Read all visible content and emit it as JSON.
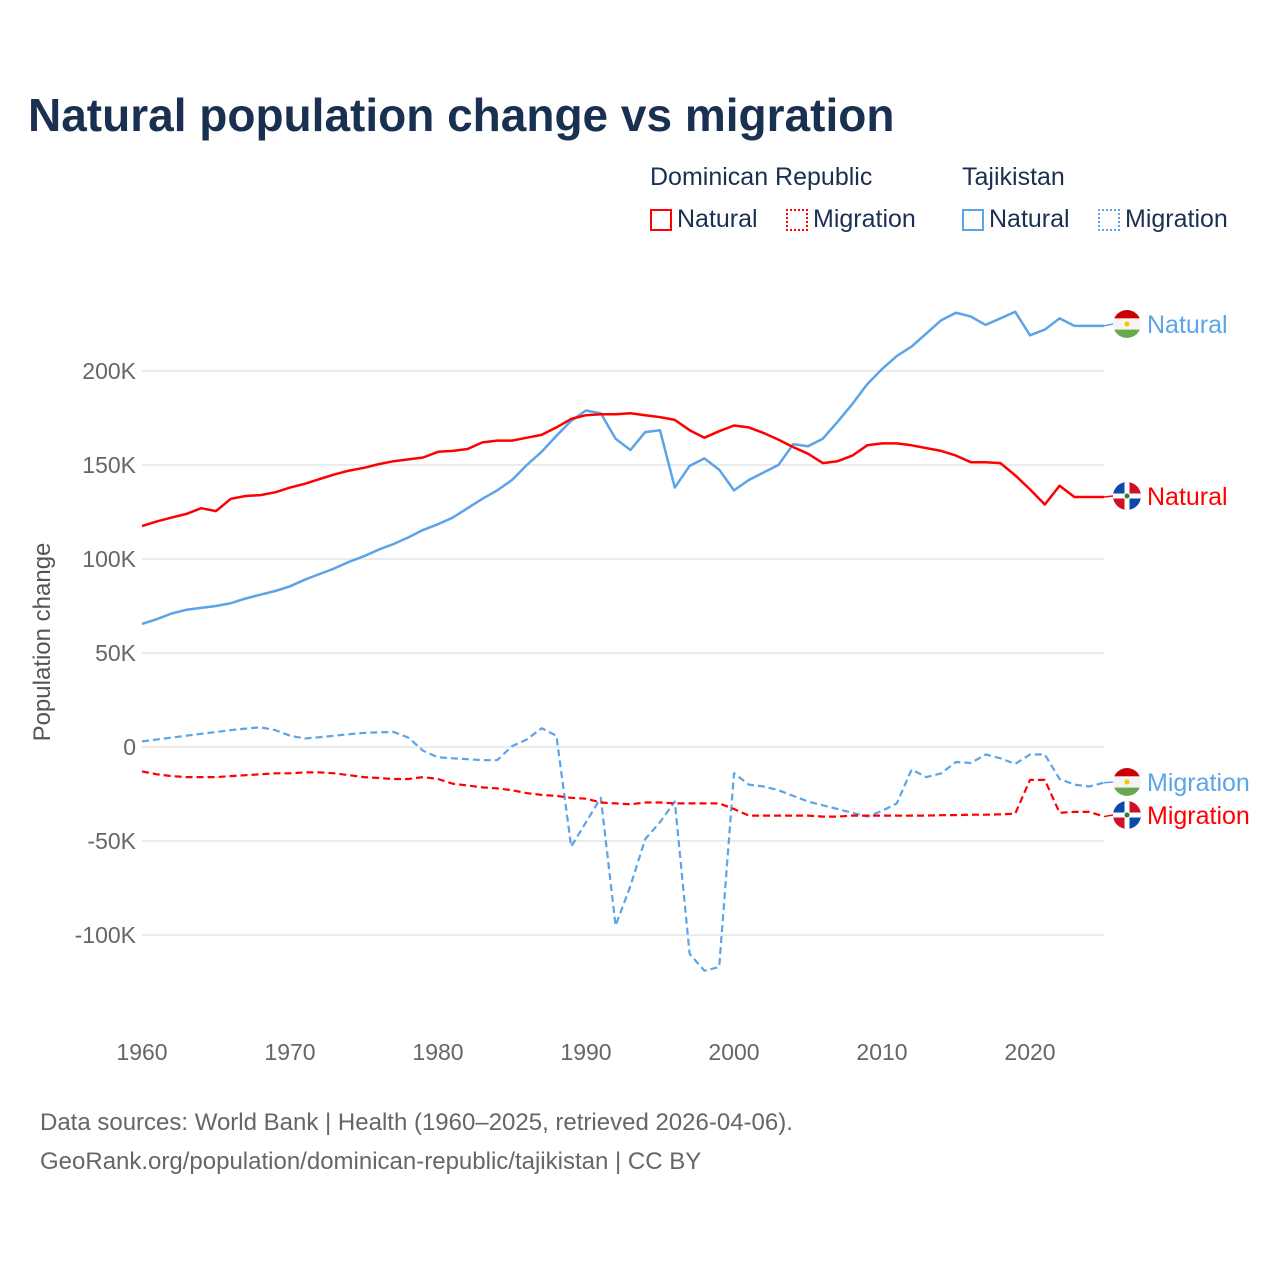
{
  "chart_data": {
    "type": "line",
    "title": "Natural population change vs migration",
    "ylabel": "Population change",
    "xlabel": "",
    "xlim": [
      1960,
      2025
    ],
    "ylim": [
      -140000,
      260000
    ],
    "x_ticks": [
      1960,
      1970,
      1980,
      1990,
      2000,
      2010,
      2020
    ],
    "y_ticks": [
      {
        "v": -100000,
        "label": "-100K"
      },
      {
        "v": -50000,
        "label": "-50K"
      },
      {
        "v": 0,
        "label": "0"
      },
      {
        "v": 50000,
        "label": "50K"
      },
      {
        "v": 100000,
        "label": "100K"
      },
      {
        "v": 150000,
        "label": "150K"
      },
      {
        "v": 200000,
        "label": "200K"
      }
    ],
    "grid": true,
    "legend": {
      "placement": "top-right",
      "groups": [
        {
          "name": "Dominican Republic",
          "items": [
            "Natural",
            "Migration"
          ]
        },
        {
          "name": "Tajikistan",
          "items": [
            "Natural",
            "Migration"
          ]
        }
      ]
    },
    "start_year": 1960,
    "series": [
      {
        "name": "Natural",
        "country": "Tajikistan",
        "color": "#5ba4e8",
        "dash": "solid",
        "end_label": "Natural",
        "values_k": [
          65.5,
          68,
          71,
          73,
          74,
          75,
          76.5,
          79,
          81,
          83,
          85.5,
          89,
          92,
          95,
          98.5,
          101.5,
          105,
          108,
          111.5,
          115.5,
          118.5,
          122,
          127,
          132,
          136.5,
          142,
          150,
          157,
          165.5,
          173.5,
          179,
          177.5,
          164,
          158,
          167.5,
          168.5,
          138,
          149.5,
          153.5,
          147.5,
          136.5,
          142,
          146,
          150,
          161,
          160,
          164,
          173,
          182.5,
          193,
          201,
          208,
          213,
          220,
          227,
          231,
          229,
          224.5,
          228,
          231.5,
          219,
          222,
          228,
          224,
          224,
          224
        ]
      },
      {
        "name": "Natural",
        "country": "Dominican Republic",
        "color": "#ff0000",
        "dash": "solid",
        "end_label": "Natural",
        "values_k": [
          117.5,
          120,
          122,
          124,
          127,
          125.5,
          132,
          133.5,
          134,
          135.5,
          138,
          140,
          142.5,
          145,
          147,
          148.5,
          150.5,
          152,
          153,
          154,
          157,
          157.5,
          158.5,
          162,
          163,
          163,
          164.5,
          166,
          170,
          174.5,
          176.5,
          177,
          177,
          177.5,
          176.5,
          175.5,
          174,
          168.5,
          164.5,
          168,
          171,
          170,
          167,
          163.5,
          159.5,
          156,
          151,
          152,
          155,
          160.5,
          161.5,
          161.5,
          160.5,
          159,
          157.5,
          155,
          151.5,
          151.5,
          151,
          144.5,
          137,
          129,
          139,
          133,
          133,
          133
        ]
      },
      {
        "name": "Migration",
        "country": "Tajikistan",
        "color": "#5ba4e8",
        "dash": "dashed",
        "end_label": "Migration",
        "values_k": [
          3,
          4,
          5,
          6,
          7,
          8,
          9,
          9.8,
          10.5,
          9,
          6,
          4.5,
          5.2,
          6,
          6.8,
          7.5,
          7.8,
          8,
          5,
          -2,
          -5.5,
          -6,
          -6.5,
          -7,
          -7,
          0.5,
          4,
          10,
          6,
          -53,
          -40,
          -27,
          -95,
          -74,
          -49,
          -40,
          -29,
          -110,
          -119,
          -117,
          -14,
          -20,
          -21,
          -23,
          -26,
          -29,
          -31,
          -33,
          -35,
          -37,
          -34,
          -30,
          -12,
          -16,
          -14,
          -8,
          -8.5,
          -4,
          -6,
          -9,
          -4,
          -4,
          -17,
          -20,
          -21,
          -19
        ]
      },
      {
        "name": "Migration",
        "country": "Dominican Republic",
        "color": "#ff0000",
        "dash": "dashed",
        "end_label": "Migration",
        "values_k": [
          -13,
          -14.5,
          -15.5,
          -16,
          -16,
          -16,
          -15.5,
          -15,
          -14.5,
          -14,
          -14,
          -13.5,
          -13.5,
          -14,
          -15,
          -16,
          -16.5,
          -17,
          -17,
          -16,
          -17,
          -19.5,
          -20.5,
          -21.5,
          -22,
          -23,
          -24.5,
          -25.5,
          -26,
          -27,
          -27.5,
          -29.5,
          -30,
          -30.5,
          -29.5,
          -29.5,
          -30,
          -30,
          -30,
          -30,
          -33,
          -36.5,
          -36.5,
          -36.5,
          -36.5,
          -36.5,
          -37,
          -37,
          -36.5,
          -36.5,
          -36.5,
          -36.5,
          -36.5,
          -36.5,
          -36.3,
          -36.2,
          -36,
          -36,
          -35.8,
          -35.5,
          -17.5,
          -17.5,
          -35,
          -34.5,
          -34.5,
          -37
        ]
      }
    ]
  },
  "sources": {
    "line1": "Data sources: World Bank | Health (1960–2025, retrieved 2026-04-06).",
    "line2": "GeoRank.org/population/dominican-republic/tajikistan | CC BY"
  }
}
